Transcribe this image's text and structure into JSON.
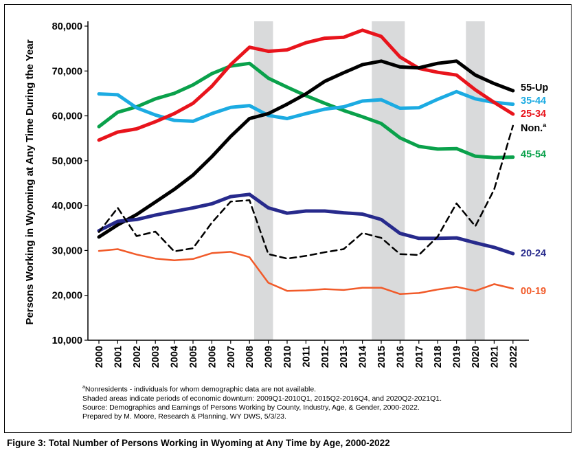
{
  "chart_data": {
    "type": "line",
    "title": "",
    "xlabel": "",
    "ylabel": "Persons Working in Wyoming at Any Time During the Year",
    "x": [
      "2000",
      "2001",
      "2002",
      "2003",
      "2004",
      "2005",
      "2006",
      "2007",
      "2008",
      "2009",
      "2010",
      "2011",
      "2012",
      "2013",
      "2014",
      "2015",
      "2016",
      "2017",
      "2018",
      "2019",
      "2020",
      "2021",
      "2022"
    ],
    "ylim": [
      10000,
      80000
    ],
    "yticks": [
      10000,
      20000,
      30000,
      40000,
      50000,
      60000,
      70000,
      80000
    ],
    "ytick_labels": [
      "10,000",
      "20,000",
      "30,000",
      "40,000",
      "50,000",
      "60,000",
      "70,000",
      "80,000"
    ],
    "grid": false,
    "recessions": [
      {
        "label": "2009Q1-2010Q1",
        "from": 2008.25,
        "to": 2009.25
      },
      {
        "label": "2015Q2-2016Q4",
        "from": 2014.5,
        "to": 2016.25
      },
      {
        "label": "2020Q2-2021Q1",
        "from": 2019.5,
        "to": 2020.5
      }
    ],
    "series": [
      {
        "name": "55-Up",
        "color": "#000000",
        "dash": false,
        "width": 5,
        "values": [
          33000,
          35700,
          38000,
          40800,
          43600,
          46800,
          50900,
          55400,
          59400,
          60500,
          62600,
          64900,
          67700,
          69600,
          71400,
          72200,
          70900,
          70700,
          71700,
          72200,
          69100,
          67200,
          65600
        ]
      },
      {
        "name": "35-44",
        "color": "#1cabe2",
        "dash": false,
        "width": 5,
        "values": [
          64900,
          64700,
          61800,
          60200,
          59000,
          58800,
          60500,
          61900,
          62300,
          60100,
          59400,
          60500,
          61500,
          62000,
          63300,
          63600,
          61700,
          61800,
          63700,
          65400,
          63800,
          63000,
          62600
        ]
      },
      {
        "name": "25-34",
        "color": "#e8141c",
        "dash": false,
        "width": 5,
        "values": [
          54600,
          56400,
          57100,
          58700,
          60500,
          62800,
          66600,
          71400,
          75300,
          74400,
          74700,
          76300,
          77300,
          77500,
          79100,
          77700,
          73100,
          70600,
          69700,
          69100,
          65800,
          63000,
          60400
        ]
      },
      {
        "name": "Non.",
        "color": "#000000",
        "dash": true,
        "width": 2.5,
        "values": [
          34100,
          39500,
          33200,
          34200,
          29800,
          30500,
          36200,
          40900,
          41200,
          29200,
          28200,
          28800,
          29600,
          30300,
          33900,
          32800,
          29200,
          29000,
          33100,
          40500,
          35400,
          43600,
          57800
        ]
      },
      {
        "name": "45-54",
        "color": "#0aa14b",
        "dash": false,
        "width": 5,
        "values": [
          57600,
          60800,
          62000,
          63800,
          65000,
          66900,
          69400,
          71100,
          71700,
          68400,
          66400,
          64500,
          62800,
          61200,
          59800,
          58300,
          55100,
          53200,
          52600,
          52700,
          51000,
          50700,
          50800
        ]
      },
      {
        "name": "20-24",
        "color": "#272a8c",
        "dash": false,
        "width": 5,
        "values": [
          34400,
          36500,
          36900,
          37900,
          38700,
          39500,
          40400,
          42000,
          42500,
          39500,
          38300,
          38800,
          38800,
          38400,
          38100,
          36900,
          33800,
          32700,
          32700,
          32800,
          31700,
          30700,
          29300
        ]
      },
      {
        "name": "00-19",
        "color": "#f15a29",
        "dash": false,
        "width": 2.5,
        "values": [
          29900,
          30300,
          29100,
          28200,
          27800,
          28100,
          29400,
          29700,
          28500,
          22800,
          21000,
          21100,
          21400,
          21200,
          21700,
          21700,
          20300,
          20500,
          21300,
          21900,
          21000,
          22500,
          21500
        ]
      }
    ],
    "annotations": [
      "a"
    ]
  },
  "notes": [
    {
      "sup": "a",
      "text": "Nonresidents - individuals for whom demographic data are not available."
    },
    {
      "sup": "",
      "text": "Shaded areas indicate periods of economic downturn: 2009Q1-2010Q1, 2015Q2-2016Q4, and 2020Q2-2021Q1."
    },
    {
      "sup": "",
      "text": "Source: Demographics and Earnings of Persons Working by County, Industry, Age, & Gender, 2000-2022."
    },
    {
      "sup": "",
      "text": "Prepared by M. Moore, Research & Planning, WY DWS, 5/3/23."
    }
  ],
  "caption": "Figure 3: Total Number of Persons Working in Wyoming at Any Time by Age, 2000-2022"
}
